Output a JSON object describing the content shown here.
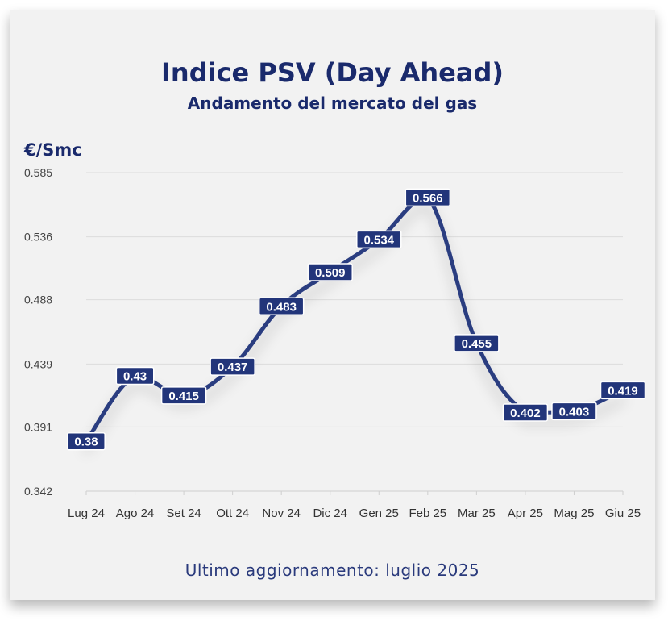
{
  "header": {
    "title": "Indice PSV (Day Ahead)",
    "subtitle": "Andamento del mercato del gas"
  },
  "unit_label": "€/Smc",
  "footer": "Ultimo aggiornamento: luglio 2025",
  "colors": {
    "line": "#2b3d80",
    "label_bg": "#22357a",
    "text": "#1a2a6c"
  },
  "chart_data": {
    "type": "line",
    "title": "Indice PSV (Day Ahead)",
    "subtitle": "Andamento del mercato del gas",
    "ylabel": "€/Smc",
    "categories": [
      "Lug 24",
      "Ago 24",
      "Set 24",
      "Ott 24",
      "Nov 24",
      "Dic 24",
      "Gen 25",
      "Feb 25",
      "Mar 25",
      "Apr 25",
      "Mag 25",
      "Giu 25"
    ],
    "values": [
      0.38,
      0.43,
      0.415,
      0.437,
      0.483,
      0.509,
      0.534,
      0.566,
      0.455,
      0.402,
      0.403,
      0.419
    ],
    "ylim": [
      0.342,
      0.585
    ],
    "yticks": [
      "0.585",
      "0.536",
      "0.488",
      "0.439",
      "0.391",
      "0.342"
    ],
    "ytick_values": [
      0.585,
      0.536,
      0.488,
      0.439,
      0.391,
      0.342
    ],
    "grid": true,
    "legend": "none"
  }
}
